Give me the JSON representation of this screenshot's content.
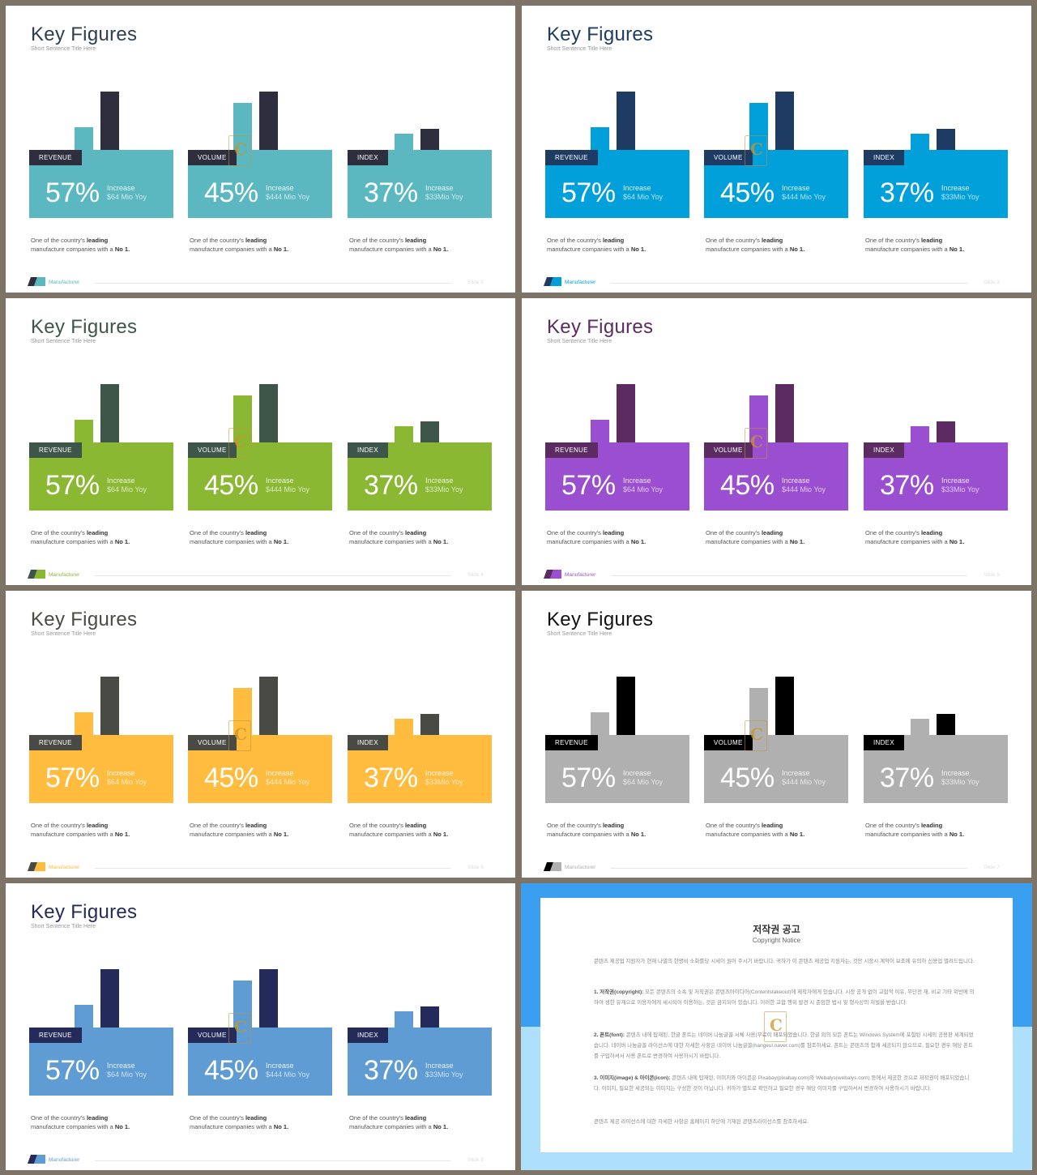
{
  "slides": [
    {
      "key": "s2",
      "title": "Key Figures",
      "subtitle": "Short Sentence Title Here",
      "footer": "Manufacturer",
      "page": "Slide 2",
      "light": "#5bb8c1",
      "dark": "#2e2e3e",
      "titleColor": "#2d3e50",
      "footerColor": "#5bb8c1"
    },
    {
      "key": "s3",
      "title": "Key Figures",
      "subtitle": "Short Sentence Title Here",
      "footer": "Manufacturer",
      "page": "Slide 3",
      "light": "#02a0db",
      "dark": "#1d3b63",
      "titleColor": "#1d3b63",
      "footerColor": "#02a0db"
    },
    {
      "key": "s4",
      "title": "Key Figures",
      "subtitle": "Short Sentence Title Here",
      "footer": "Manufacturer",
      "page": "Slide 4",
      "light": "#8ab833",
      "dark": "#3e5549",
      "titleColor": "#3e5549",
      "footerColor": "#8ab833"
    },
    {
      "key": "s5",
      "title": "Key Figures",
      "subtitle": "Short Sentence Title Here",
      "footer": "Manufacturer",
      "page": "Slide 5",
      "light": "#9a4fd0",
      "dark": "#5b2b61",
      "titleColor": "#5b2b61",
      "footerColor": "#9a4fd0"
    },
    {
      "key": "s6",
      "title": "Key Figures",
      "subtitle": "Short Sentence Title Here",
      "footer": "Manufacturer",
      "page": "Slide 6",
      "light": "#ffbc3f",
      "dark": "#4a4a45",
      "titleColor": "#4a4a45",
      "footerColor": "#ffbc3f"
    },
    {
      "key": "s7",
      "title": "Key Figures",
      "subtitle": "Short Sentence Title Here",
      "footer": "Manufacturer",
      "page": "Slide 7",
      "light": "#b0b0b0",
      "dark": "#000000",
      "titleColor": "#111111",
      "footerColor": "#b0b0b0"
    },
    {
      "key": "s8",
      "title": "Key Figures",
      "subtitle": "Short Sentence Title Here",
      "footer": "Manufacturer",
      "page": "Slide 8",
      "light": "#5e9cd3",
      "dark": "#242a5a",
      "titleColor": "#242a5a",
      "footerColor": "#5e9cd3"
    }
  ],
  "cards": [
    {
      "label": "REVENUE",
      "pct": "57%",
      "inc": "Increase",
      "sub": "$64 Mio Yoy",
      "desc1": "One of the country's ",
      "desc1b": "leading",
      "desc2": "manufacture companies ",
      "desc2m": "with  a ",
      "desc2b": "No 1."
    },
    {
      "label": "VOLUME",
      "pct": "45%",
      "inc": "Increase",
      "sub": "$444 Mio Yoy",
      "desc1": "One of the country's ",
      "desc1b": "leading",
      "desc2": "manufacture companies ",
      "desc2m": "with  a ",
      "desc2b": "No 1."
    },
    {
      "label": "INDEX",
      "pct": "37%",
      "inc": "Increase",
      "sub": "$33Mio  Yoy",
      "desc1": "One of the country's ",
      "desc1b": "leading",
      "desc2": "manufacture companies ",
      "desc2m": "with  a ",
      "desc2b": "No 1."
    }
  ],
  "bar_levels": {
    "card0": {
      "light": 0.45,
      "dark": 1.0
    },
    "card1": {
      "light": 0.82,
      "dark": 1.0
    },
    "card2": {
      "light": 0.35,
      "dark": 0.42
    }
  },
  "watermark_letter": "C",
  "copyright": {
    "title": "저작권 공고",
    "subtitle": "Copyright Notice",
    "intro": "콘텐츠 제공업 지원자가 현재 나열의 한명비 소화를당 시세이 원어 주시기 바랍니다. 귀하가 이 콘텐츠 제공업 지원자는, 것만 시장시 계약이 보조에 유의하 신용업 별려드립니다.",
    "p1_head": "1. 저작권(copyright):",
    "p1": " 모든 콘텐츠의 소속 및 저작권은 콘텐츠아이디어(Contentstakeout)에 제작자에게 있습니다. 시장 공개 없이 교합적 이유, 무단전 재, 비교 기타 위반에 의하여 생한 유재으로 이용자에게 세시되어 이용하는, 것은 금지되어 있습니다. 이러한 교합 행위 발견 시 준엄한 법시 및 형사상의 처벌을 받습니다.",
    "p2_head": "2. 폰트(font):",
    "p2": " 콘텐츠 내에 탑재된, 한글 폰트는 네이버 나눔글꼴 서체 사용(무료이 배포되었습니다. 한글 외의 모든 폰트는 Windows System에 포함된 시세의 공용판 세계되었습니다. 네이버 나눔글꼴 라이선스에 대한 자세한 사항은 네이버 나눔글꼴(hangeul.naver.com)를 참조하세요. 폰트는 콘텐츠의 함께 세공되지 않으므로, 필요한 경우 해당 폰트를 구입하셔서 사용 폰트로 변경하여 사용하시기 바랍니다.",
    "p3_head": "3. 이미지(image) & 아이콘(icon):",
    "p3": " 콘텐츠 내에 탑재된, 이미지와 아이콘은 Pixabay(pixabay.com)와 Webalys(webalys.com) 등에서 제공한 것으로 저작권이 배포되었습니다. 이미지, 필요한 세공되는 이미지는 구성한 것이 아닙니다. 귀하가 별도로 확인하고 필요한 경우 해당 이미지를 구입하셔서 변경하여 사용하시기 바랍니다.",
    "outro": "콘텐츠 제공 라이선스에 대한 자세한 사항은 홈페이지 하단에 기재된 콘텐츠라이선스를 참조하세요."
  }
}
